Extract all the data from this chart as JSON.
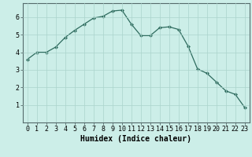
{
  "x": [
    0,
    1,
    2,
    3,
    4,
    5,
    6,
    7,
    8,
    9,
    10,
    11,
    12,
    13,
    14,
    15,
    16,
    17,
    18,
    19,
    20,
    21,
    22,
    23
  ],
  "y": [
    3.6,
    4.0,
    4.0,
    4.3,
    4.85,
    5.25,
    5.6,
    5.95,
    6.05,
    6.35,
    6.4,
    5.6,
    4.95,
    4.95,
    5.4,
    5.45,
    5.3,
    4.35,
    3.05,
    2.8,
    2.3,
    1.8,
    1.6,
    0.85
  ],
  "line_color": "#2e6b5e",
  "marker": "D",
  "marker_size": 2.5,
  "bg_color": "#cceee8",
  "grid_color": "#aad4cc",
  "xlabel": "Humidex (Indice chaleur)",
  "xlabel_fontsize": 7,
  "tick_fontsize": 6,
  "ylim": [
    0,
    6.8
  ],
  "xlim": [
    -0.5,
    23.5
  ],
  "yticks": [
    1,
    2,
    3,
    4,
    5,
    6
  ],
  "xticks": [
    0,
    1,
    2,
    3,
    4,
    5,
    6,
    7,
    8,
    9,
    10,
    11,
    12,
    13,
    14,
    15,
    16,
    17,
    18,
    19,
    20,
    21,
    22,
    23
  ],
  "spine_color": "#556b6b",
  "fig_width": 3.2,
  "fig_height": 2.0,
  "dpi": 100
}
